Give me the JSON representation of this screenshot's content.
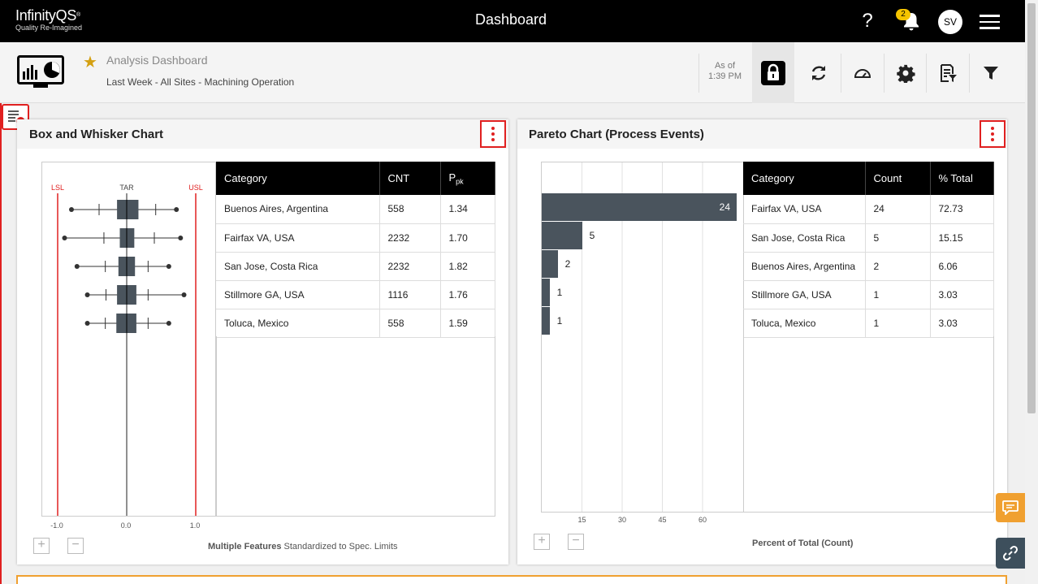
{
  "app": {
    "logo_name": "InfinityQS",
    "logo_mark": "®",
    "logo_tagline": "Quality Re-Imagined",
    "title": "Dashboard",
    "help_symbol": "?",
    "notification_count": "2",
    "user_initials": "SV"
  },
  "toolbar": {
    "dashboard_name": "Analysis Dashboard",
    "dashboard_filter": "Last Week - All Sites - Machining Operation",
    "as_of_label": "As of",
    "as_of_time": "1:39 PM"
  },
  "box_panel": {
    "title": "Box and Whisker Chart",
    "axis_markers": {
      "lsl": "LSL",
      "tar": "TAR",
      "usl": "USL"
    },
    "footer_bold": "Multiple Features",
    "footer_rest": "Standardized to Spec. Limits",
    "columns": [
      "Category",
      "CNT",
      "P",
      "pk"
    ],
    "rows": [
      {
        "category": "Buenos Aires, Argentina",
        "cnt": "558",
        "ppk": "1.34"
      },
      {
        "category": "Fairfax VA, USA",
        "cnt": "2232",
        "ppk": "1.70"
      },
      {
        "category": "San Jose, Costa Rica",
        "cnt": "2232",
        "ppk": "1.82"
      },
      {
        "category": "Stillmore GA, USA",
        "cnt": "1116",
        "ppk": "1.76"
      },
      {
        "category": "Toluca, Mexico",
        "cnt": "558",
        "ppk": "1.59"
      }
    ]
  },
  "pareto_panel": {
    "title": "Pareto Chart (Process Events)",
    "footer": "Percent of Total (Count)",
    "columns": [
      "Category",
      "Count",
      "% Total"
    ],
    "rows": [
      {
        "category": "Fairfax VA, USA",
        "count": "24",
        "pct": "72.73"
      },
      {
        "category": "San Jose, Costa Rica",
        "count": "5",
        "pct": "15.15"
      },
      {
        "category": "Buenos Aires, Argentina",
        "count": "2",
        "pct": "6.06"
      },
      {
        "category": "Stillmore GA, USA",
        "count": "1",
        "pct": "3.03"
      },
      {
        "category": "Toluca, Mexico",
        "count": "1",
        "pct": "3.03"
      }
    ]
  },
  "colors": {
    "accent": "#e02020",
    "bar": "#4a545d",
    "star": "#d4a012",
    "chat": "#f0a030"
  },
  "chart_data": [
    {
      "type": "box",
      "title": "Box and Whisker Chart",
      "xlabel": "Multiple Features Standardized to Spec. Limits",
      "xlim": [
        -1.0,
        1.0
      ],
      "x_ticks": [
        "-1.0",
        "0.0",
        "1.0"
      ],
      "reference_lines": {
        "LSL": -1.0,
        "TAR": 0.0,
        "USL": 1.0
      },
      "categories": [
        "Buenos Aires, Argentina",
        "Fairfax VA, USA",
        "San Jose, Costa Rica",
        "Stillmore GA, USA",
        "Toluca, Mexico"
      ],
      "boxes": [
        {
          "min": -0.8,
          "p10": -0.4,
          "q1": -0.14,
          "median": 0.0,
          "q3": 0.17,
          "p90": 0.42,
          "max": 0.72
        },
        {
          "min": -0.9,
          "p10": -0.33,
          "q1": -0.1,
          "median": 0.0,
          "q3": 0.11,
          "p90": 0.4,
          "max": 0.78
        },
        {
          "min": -0.72,
          "p10": -0.31,
          "q1": -0.12,
          "median": 0.0,
          "q3": 0.12,
          "p90": 0.31,
          "max": 0.61
        },
        {
          "min": -0.57,
          "p10": -0.3,
          "q1": -0.14,
          "median": 0.0,
          "q3": 0.14,
          "p90": 0.31,
          "max": 0.83
        },
        {
          "min": -0.57,
          "p10": -0.31,
          "q1": -0.15,
          "median": 0.0,
          "q3": 0.14,
          "p90": 0.31,
          "max": 0.61
        }
      ]
    },
    {
      "type": "bar",
      "orientation": "horizontal",
      "title": "Pareto Chart (Process Events)",
      "xlabel": "Percent of Total (Count)",
      "x_ticks": [
        15,
        30,
        45,
        60
      ],
      "xlim": [
        0,
        72.73
      ],
      "categories": [
        "Fairfax VA, USA",
        "San Jose, Costa Rica",
        "Buenos Aires, Argentina",
        "Stillmore GA, USA",
        "Toluca, Mexico"
      ],
      "values": [
        72.73,
        15.15,
        6.06,
        3.03,
        3.03
      ],
      "labels": [
        "24",
        "5",
        "2",
        "1",
        "1"
      ]
    }
  ]
}
